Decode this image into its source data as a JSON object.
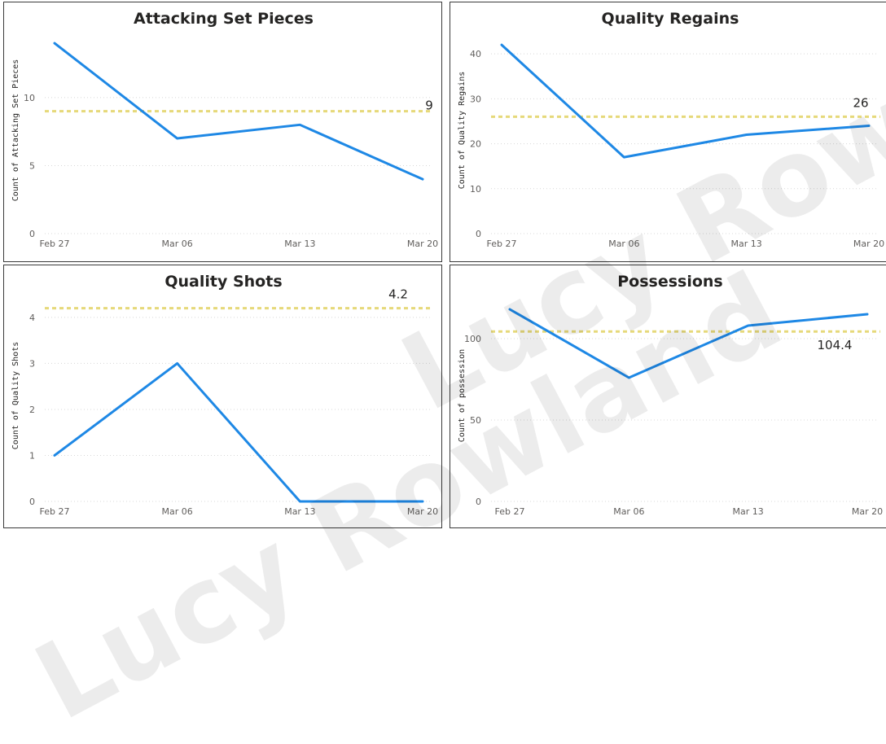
{
  "watermark": {
    "text_a": "Lucy Rowland",
    "text_b": "Lucy Rowland"
  },
  "colors": {
    "series": "#1e88e5",
    "average_line": "#e6d97a"
  },
  "chart_data": [
    {
      "type": "line",
      "title": "Attacking Set Pieces",
      "ylabel": "Count of Attacking Set Pieces",
      "xlabel": "",
      "categories": [
        "Feb 27",
        "Mar 06",
        "Mar 13",
        "Mar 20"
      ],
      "x": [
        "2022-02-27",
        "2022-03-06",
        "2022-03-13",
        "2022-03-20"
      ],
      "values": [
        14,
        7,
        8,
        4
      ],
      "yticks": [
        0,
        5,
        10
      ],
      "ylim": [
        0,
        15.2
      ],
      "average": 9,
      "average_label": "9",
      "grid": true
    },
    {
      "type": "line",
      "title": "Quality Regains",
      "ylabel": "Count of Quality Regains",
      "xlabel": "",
      "categories": [
        "Feb 27",
        "Mar 06",
        "Mar 13",
        "Mar 20"
      ],
      "x": [
        "2022-02-27",
        "2022-03-06",
        "2022-03-13",
        "2022-03-20"
      ],
      "values": [
        42,
        17,
        22,
        24
      ],
      "yticks": [
        0,
        10,
        20,
        30,
        40
      ],
      "ylim": [
        0,
        46
      ],
      "average": 26,
      "average_label": "26",
      "grid": true
    },
    {
      "type": "line",
      "title": "Quality Shots",
      "ylabel": "Count of Quality Shots",
      "xlabel": "",
      "categories": [
        "Feb 27",
        "Mar 06",
        "Mar 13",
        "Mar 20"
      ],
      "x": [
        "2022-02-27",
        "2022-03-06",
        "2022-03-13",
        "2022-03-20"
      ],
      "values": [
        1,
        3,
        0,
        0
      ],
      "yticks": [
        0,
        1,
        2,
        3,
        4
      ],
      "ylim": [
        0,
        4.6
      ],
      "average": 4.2,
      "average_label": "4.2",
      "grid": true
    },
    {
      "type": "line",
      "title": "Possessions",
      "ylabel": "Count of possession",
      "xlabel": "",
      "categories": [
        "Feb 27",
        "Mar 06",
        "Mar 13",
        "Mar 20"
      ],
      "x": [
        "2022-02-27",
        "2022-03-06",
        "2022-03-13",
        "2022-03-20"
      ],
      "values": [
        118,
        76,
        108,
        115
      ],
      "yticks": [
        0,
        50,
        100
      ],
      "ylim": [
        0,
        130
      ],
      "average": 104.4,
      "average_label": "104.4",
      "grid": true
    }
  ]
}
